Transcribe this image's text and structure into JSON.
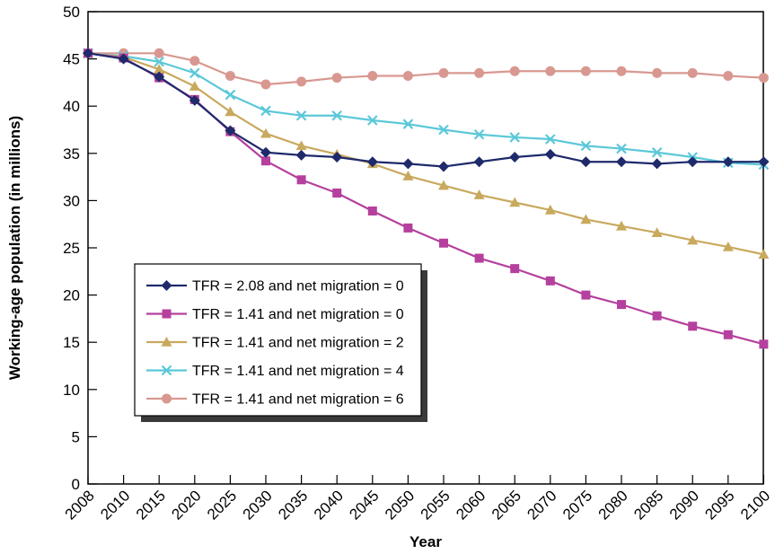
{
  "chart_data": {
    "type": "line",
    "title": "",
    "xlabel": "Year",
    "ylabel": "Working-age population (in millions)",
    "ylim": [
      0,
      50
    ],
    "yticks": [
      0,
      5,
      10,
      15,
      20,
      25,
      30,
      35,
      40,
      45,
      50
    ],
    "x": [
      2008,
      2010,
      2015,
      2020,
      2025,
      2030,
      2035,
      2040,
      2045,
      2050,
      2055,
      2060,
      2065,
      2070,
      2075,
      2080,
      2085,
      2090,
      2095,
      2100
    ],
    "grid": false,
    "legend_position": "lower-left",
    "series": [
      {
        "name": "TFR = 2.08 and net migration = 0",
        "color": "#1f2a6b",
        "marker": "diamond",
        "values": [
          45.6,
          45.0,
          43.1,
          40.6,
          37.4,
          35.1,
          34.8,
          34.6,
          34.1,
          33.9,
          33.6,
          34.1,
          34.6,
          34.9,
          34.1,
          34.1,
          33.9,
          34.1,
          34.1,
          34.1
        ]
      },
      {
        "name": "TFR = 1.41 and net migration = 0",
        "color": "#b5409e",
        "marker": "square",
        "values": [
          45.6,
          45.1,
          43.0,
          40.7,
          37.3,
          34.2,
          32.2,
          30.8,
          28.9,
          27.1,
          25.5,
          23.9,
          22.8,
          21.5,
          20.0,
          19.0,
          17.8,
          16.7,
          15.8,
          14.8
        ]
      },
      {
        "name": "TFR = 1.41 and net migration = 2",
        "color": "#c8a95e",
        "marker": "triangle",
        "values": [
          45.6,
          45.2,
          43.9,
          42.1,
          39.4,
          37.1,
          35.8,
          34.9,
          33.9,
          32.6,
          31.6,
          30.6,
          29.8,
          29.0,
          28.0,
          27.3,
          26.6,
          25.8,
          25.1,
          24.3
        ]
      },
      {
        "name": "TFR = 1.41 and net migration = 4",
        "color": "#5bc8d9",
        "marker": "x",
        "values": [
          45.6,
          45.3,
          44.7,
          43.5,
          41.2,
          39.5,
          39.0,
          39.0,
          38.5,
          38.1,
          37.5,
          37.0,
          36.7,
          36.5,
          35.8,
          35.5,
          35.1,
          34.6,
          34.0,
          33.8
        ]
      },
      {
        "name": "TFR = 1.41 and net migration = 6",
        "color": "#d89890",
        "marker": "circle",
        "values": [
          45.6,
          45.6,
          45.6,
          44.8,
          43.2,
          42.3,
          42.6,
          43.0,
          43.2,
          43.2,
          43.5,
          43.5,
          43.7,
          43.7,
          43.7,
          43.7,
          43.5,
          43.5,
          43.2,
          43.0
        ]
      }
    ]
  }
}
